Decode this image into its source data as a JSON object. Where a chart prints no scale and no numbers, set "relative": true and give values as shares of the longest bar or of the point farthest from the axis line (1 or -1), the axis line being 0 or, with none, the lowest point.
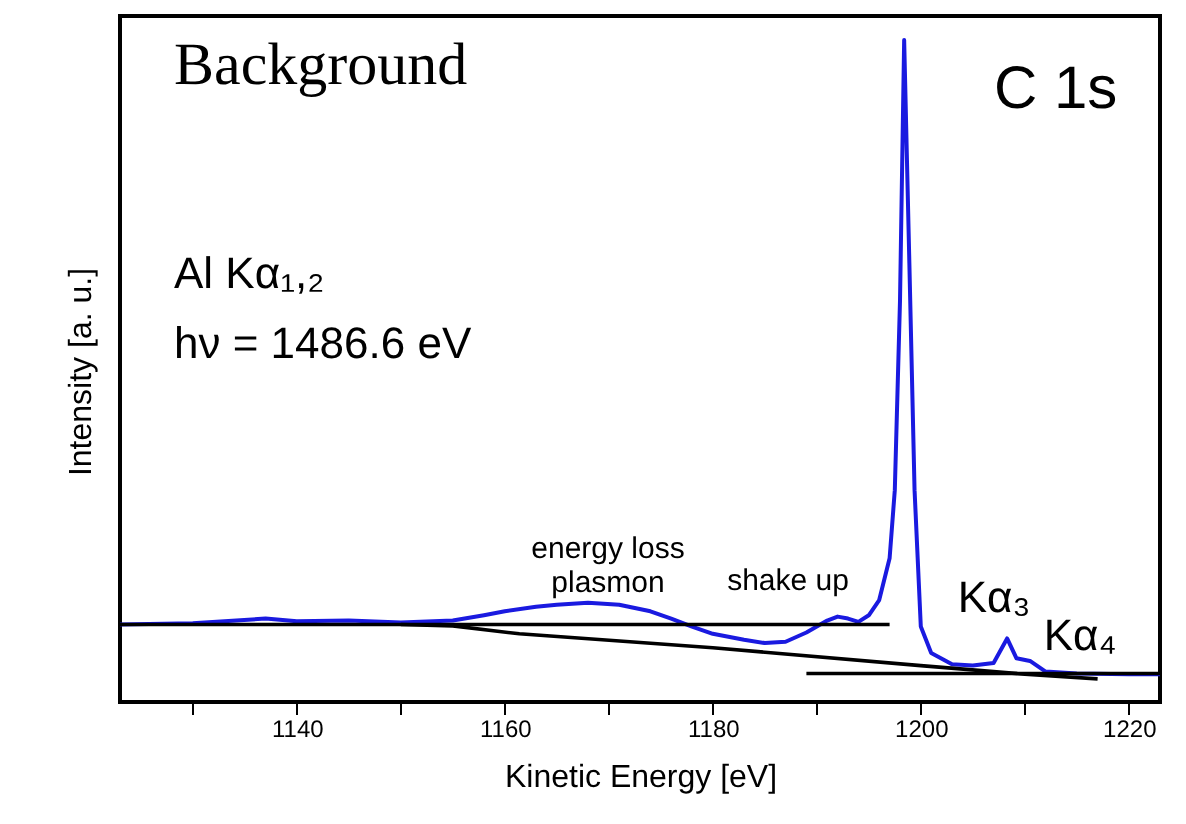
{
  "chart_data": {
    "type": "line",
    "relative": true,
    "xlabel": "Kinetic Energy [eV]",
    "ylabel": "Intensity [a. u.]",
    "xlim": [
      1123,
      1223
    ],
    "xticks": [
      {
        "value": 1130,
        "label": null
      },
      1140,
      {
        "value": 1150,
        "label": null
      },
      1160,
      {
        "value": 1170,
        "label": null
      },
      1180,
      {
        "value": 1190,
        "label": null
      },
      1200,
      {
        "value": 1210,
        "label": null
      },
      1220
    ],
    "series": [
      {
        "color": "#1a1ae0",
        "x": [
          1123,
          1130,
          1137,
          1140,
          1145,
          1150,
          1155,
          1158,
          1160,
          1163,
          1165,
          1168,
          1171,
          1174,
          1176,
          1178,
          1180,
          1183,
          1185,
          1187,
          1189,
          1191,
          1192,
          1193,
          1194,
          1195,
          1196,
          1197,
          1197.5,
          1198,
          1198.4,
          1198.9,
          1199.4,
          1200,
          1201,
          1203,
          1205,
          1207,
          1208.3,
          1209.2,
          1210.5,
          1212,
          1215,
          1220,
          1223
        ],
        "values": [
          0.117,
          0.119,
          0.126,
          0.122,
          0.123,
          0.12,
          0.123,
          0.131,
          0.137,
          0.144,
          0.147,
          0.15,
          0.147,
          0.137,
          0.126,
          0.114,
          0.103,
          0.094,
          0.089,
          0.091,
          0.105,
          0.123,
          0.129,
          0.126,
          0.121,
          0.131,
          0.154,
          0.217,
          0.32,
          0.606,
          1.0,
          0.663,
          0.32,
          0.114,
          0.074,
          0.057,
          0.055,
          0.059,
          0.096,
          0.066,
          0.062,
          0.046,
          0.043,
          0.042,
          0.042
        ]
      },
      {
        "color": "#000000",
        "x": [
          1123,
          1197
        ],
        "values": [
          0.117,
          0.117
        ]
      },
      {
        "color": "#000000",
        "x": [
          1150,
          1155,
          1161.4,
          1180,
          1200,
          1210,
          1217
        ],
        "values": [
          0.117,
          0.115,
          0.103,
          0.082,
          0.055,
          0.042,
          0.035
        ]
      },
      {
        "color": "#000000",
        "x": [
          1189,
          1223
        ],
        "values": [
          0.043,
          0.043
        ]
      }
    ],
    "annotations": [
      "Background",
      "C 1s",
      "Al Kα₁,₂",
      "hν = 1486.6 eV",
      "energy loss\nplasmon",
      "shake up",
      "Kα₃",
      "Kα₄"
    ]
  }
}
